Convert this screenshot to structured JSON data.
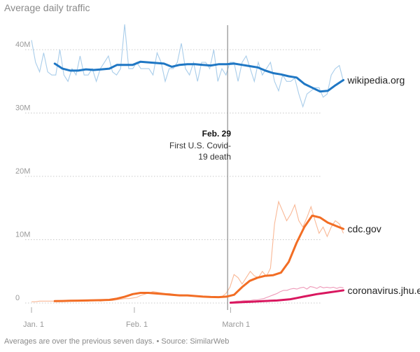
{
  "title": "Average daily traffic",
  "footnote": "Averages are over the previous seven days. • Source: SimilarWeb",
  "chart_data": {
    "type": "line",
    "title": "Average daily traffic",
    "xlabel": "",
    "ylabel": "",
    "x_ticks": [
      "Jan. 1",
      "Feb. 1",
      "March 1"
    ],
    "y_ticks": [
      "0",
      "10M",
      "20M",
      "30M",
      "40M"
    ],
    "ylim": [
      0,
      44000000
    ],
    "grid": true,
    "annotation": {
      "date": "Feb. 29",
      "lines": [
        "First U.S. Covid-",
        "19 death"
      ]
    },
    "colors": {
      "wikipedia_avg": "#1f77c4",
      "wikipedia_daily": "#a9cdea",
      "cdc_avg": "#f26d24",
      "cdc_daily": "#f9b896",
      "jhu": "#d9175f",
      "jhu_daily": "#ee99b8",
      "marker": "#777777",
      "grid": "#c9c9c9"
    },
    "series": [
      {
        "name": "wikipedia.org",
        "x_start": "Jan. 8",
        "x_end": "April 4",
        "daily_x_start": "Jan. 1",
        "daily": [
          41.5,
          38,
          36.5,
          39.5,
          36.5,
          36,
          36,
          40,
          36,
          35,
          37,
          36,
          39,
          36,
          36,
          37,
          35,
          37,
          38,
          39,
          36.5,
          36,
          37,
          44,
          37,
          37,
          38,
          37,
          37,
          37,
          36,
          39.5,
          38,
          35,
          37,
          37,
          38,
          41,
          37,
          36,
          38,
          35,
          38,
          38,
          37,
          40,
          35,
          37,
          36,
          38,
          38,
          35,
          38,
          39,
          37,
          35,
          38,
          36,
          37,
          38,
          35,
          33.5,
          36,
          35,
          35,
          35.5,
          33,
          31,
          33,
          33.5,
          34,
          34,
          32.5,
          33,
          36,
          37,
          37.5,
          35
        ],
        "values": [
          37.8,
          37.0,
          36.7,
          36.7,
          36.9,
          36.8,
          36.9,
          37.0,
          37.6,
          37.6,
          37.6,
          38.1,
          38.0,
          37.9,
          37.8,
          37.3,
          37.6,
          37.7,
          37.7,
          37.6,
          37.5,
          37.7,
          37.7,
          37.8,
          37.6,
          37.4,
          37.2,
          36.7,
          36.3,
          36.1,
          35.8,
          35.6,
          34.6,
          34.0,
          33.4,
          33.5,
          34.4,
          35.2
        ]
      },
      {
        "name": "cdc.gov",
        "x_start": "Jan. 8",
        "x_end": "April 4",
        "daily_x_start": "Jan. 1",
        "daily": [
          0.2,
          0.2,
          0.3,
          0.3,
          0.3,
          0.3,
          0.3,
          0.3,
          0.3,
          0.3,
          0.3,
          0.3,
          0.3,
          0.3,
          0.3,
          0.4,
          0.4,
          0.3,
          0.4,
          0.4,
          0.4,
          0.5,
          0.6,
          0.7,
          0.7,
          0.8,
          0.9,
          1.2,
          1.4,
          1.6,
          1.8,
          1.7,
          1.6,
          1.5,
          1.5,
          1.4,
          1.3,
          1.3,
          1.2,
          1.2,
          1.1,
          1.1,
          1.0,
          1.0,
          0.9,
          0.9,
          0.9,
          1.0,
          1.5,
          2.5,
          4.5,
          4.0,
          3.0,
          4.0,
          5.0,
          4.3,
          4.0,
          5.0,
          4.2,
          5.5,
          12.5,
          16.0,
          14.5,
          13.0,
          14.0,
          15.5,
          13.0,
          12.0,
          13.5,
          15.2,
          13.0,
          11.0,
          12.0,
          10.5,
          12.0,
          13.0,
          12.5,
          11.0
        ],
        "values": [
          0.3,
          0.32,
          0.35,
          0.38,
          0.4,
          0.43,
          0.45,
          0.5,
          0.7,
          1.0,
          1.4,
          1.6,
          1.6,
          1.5,
          1.4,
          1.3,
          1.2,
          1.2,
          1.1,
          1.0,
          0.95,
          0.93,
          1.0,
          1.3,
          2.5,
          3.5,
          4.0,
          4.3,
          4.4,
          4.8,
          6.5,
          9.5,
          12.0,
          13.8,
          13.5,
          12.7,
          12.2,
          11.7
        ]
      },
      {
        "name": "coronavirus.jhu.edu",
        "x_start": "March 1",
        "x_end": "April 4",
        "daily_x_start": "March 1",
        "daily": [
          0.1,
          0.2,
          0.3,
          0.3,
          0.4,
          0.4,
          0.4,
          0.5,
          0.5,
          0.6,
          0.7,
          0.9,
          1.1,
          1.3,
          1.5,
          1.8,
          2.0,
          2.0,
          2.2,
          2.3,
          2.2,
          2.4,
          2.5,
          2.2,
          2.6,
          2.5,
          2.3,
          2.6,
          2.4,
          2.5,
          2.4,
          2.5,
          2.3,
          2.5,
          2.4
        ],
        "values": [
          0.05,
          0.1,
          0.15,
          0.2,
          0.25,
          0.3,
          0.35,
          0.4,
          0.5,
          0.6,
          0.8,
          1.0,
          1.2,
          1.4,
          1.55,
          1.7,
          1.85,
          2.0
        ]
      }
    ]
  }
}
